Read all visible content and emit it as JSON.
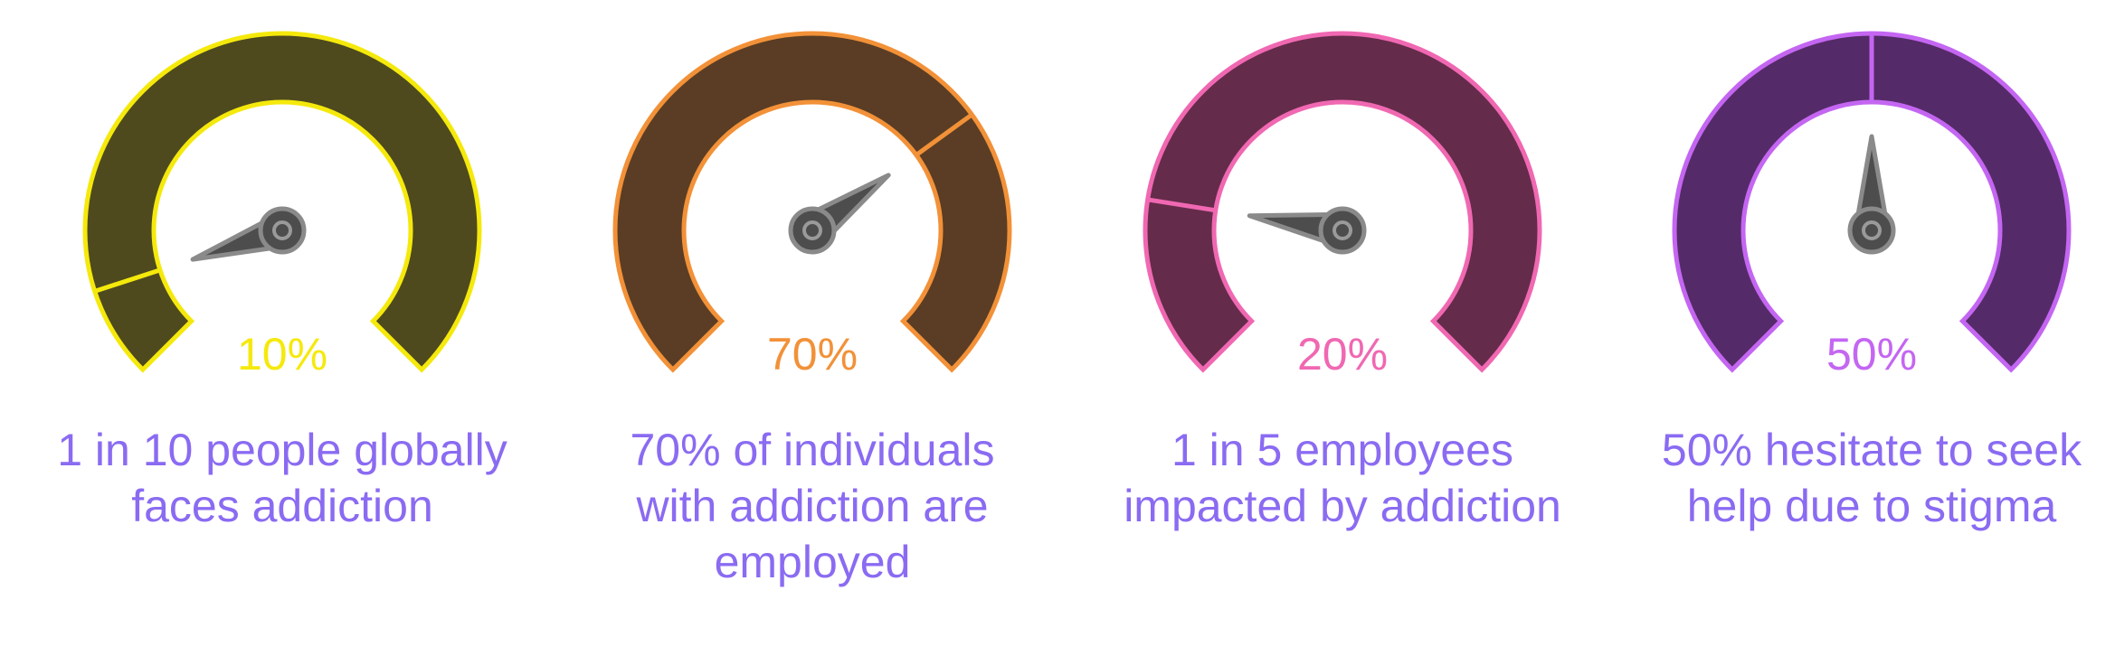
{
  "chart_data": [
    {
      "type": "gauge",
      "value": 10,
      "value_label": "10%",
      "ylim": [
        0,
        100
      ],
      "color": "#f5e90c",
      "fill": "#4e4a1e",
      "caption": [
        "1 in 10 people globally",
        "faces addiction"
      ]
    },
    {
      "type": "gauge",
      "value": 70,
      "value_label": "70%",
      "ylim": [
        0,
        100
      ],
      "color": "#f29138",
      "fill": "#5a3d24",
      "caption": [
        "70% of individuals",
        "with addiction are",
        "employed"
      ]
    },
    {
      "type": "gauge",
      "value": 20,
      "value_label": "20%",
      "ylim": [
        0,
        100
      ],
      "color": "#f068b2",
      "fill": "#652b4a",
      "caption": [
        "1 in 5 employees",
        "impacted by addiction"
      ]
    },
    {
      "type": "gauge",
      "value": 50,
      "value_label": "50%",
      "ylim": [
        0,
        100
      ],
      "color": "#c466f2",
      "fill": "#552a68",
      "caption": [
        "50% hesitate to seek",
        "help due to stigma"
      ]
    }
  ]
}
